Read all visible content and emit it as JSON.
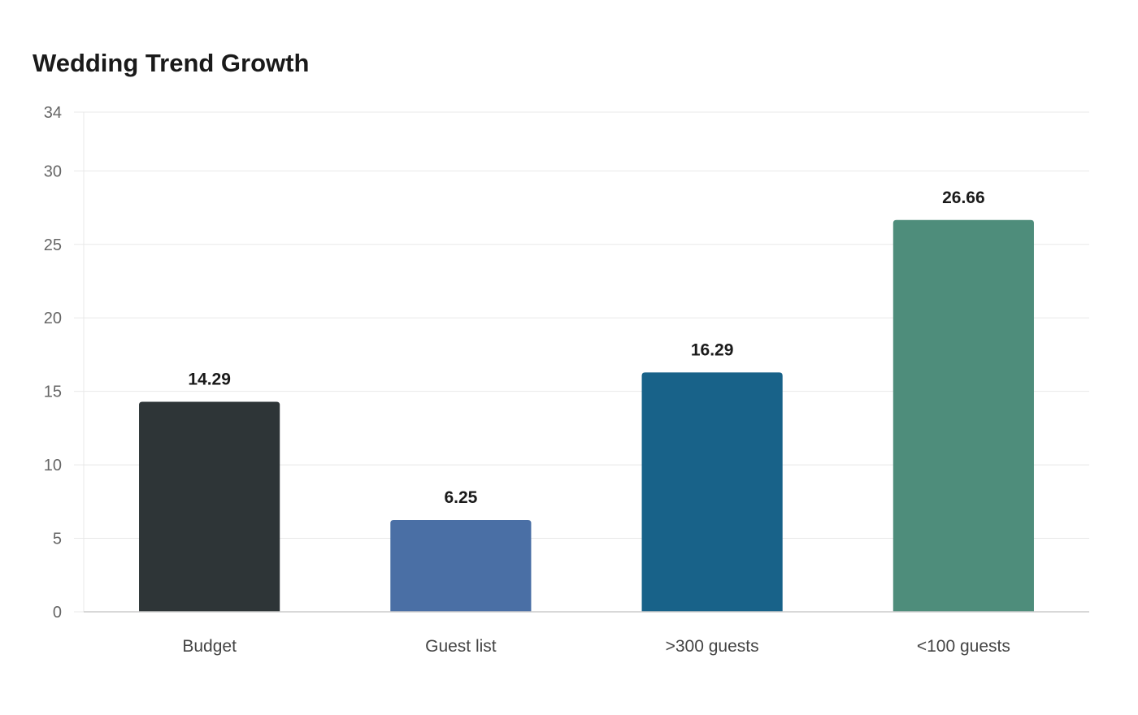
{
  "chart_data": {
    "type": "bar",
    "title": "Wedding Trend Growth",
    "xlabel": "",
    "ylabel": "",
    "categories": [
      "Budget",
      "Guest list",
      ">300 guests",
      "<100 guests"
    ],
    "values": [
      14.29,
      6.25,
      16.29,
      26.66
    ],
    "value_labels": [
      "14.29",
      "6.25",
      "16.29",
      "26.66"
    ],
    "colors": [
      "#2e3537",
      "#4a6fa5",
      "#186289",
      "#4e8d7b"
    ],
    "ylim": [
      0,
      34
    ],
    "yticks": [
      0,
      5,
      10,
      15,
      20,
      25,
      30,
      34
    ],
    "grid": true,
    "legend": "none"
  }
}
